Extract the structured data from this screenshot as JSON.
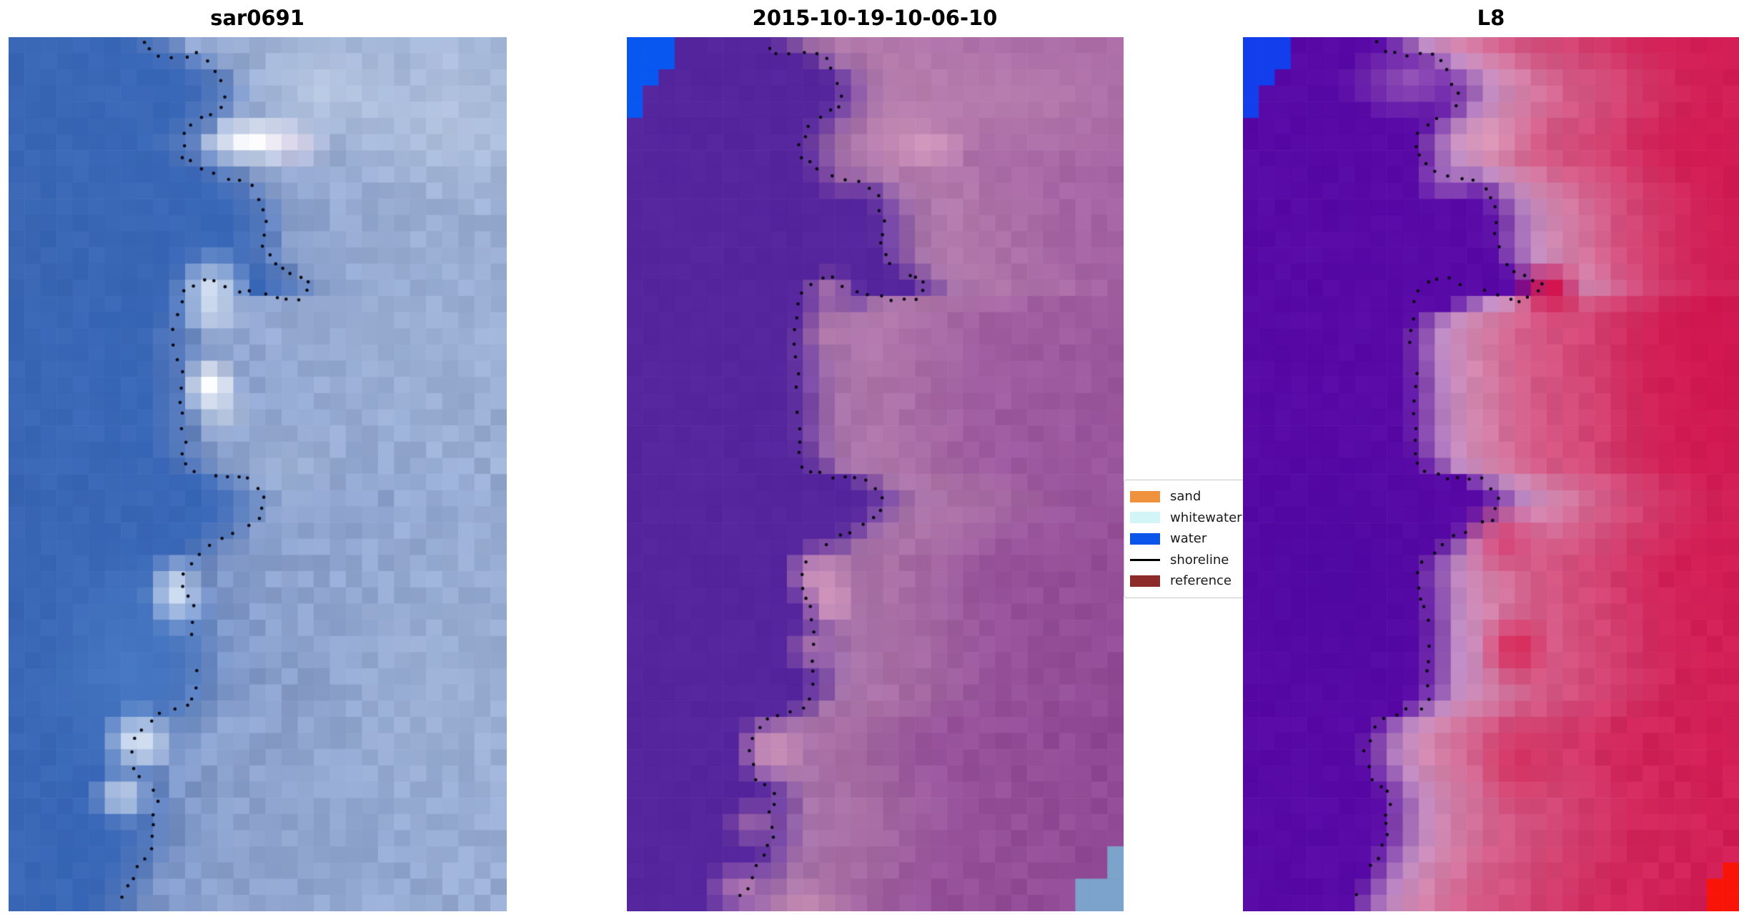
{
  "chart_data": {
    "type": "heatmap",
    "figure_background": "#ffffff",
    "panels": [
      {
        "title": "sar0691"
      },
      {
        "title": "2015-10-19-10-06-10"
      },
      {
        "title": "L8"
      }
    ],
    "legend": [
      {
        "label": "sand",
        "swatch": "patch",
        "color": "#F0913E"
      },
      {
        "label": "whitewater",
        "swatch": "patch",
        "color": "#D2F5F7"
      },
      {
        "label": "water",
        "swatch": "patch",
        "color": "#0C55EA"
      },
      {
        "label": "shoreline",
        "swatch": "line",
        "color": "#000000"
      },
      {
        "label": "reference",
        "swatch": "patch",
        "color": "#8D2B2B"
      }
    ],
    "shoreline_path": [
      [
        0.27,
        0.004
      ],
      [
        0.285,
        0.014
      ],
      [
        0.305,
        0.02
      ],
      [
        0.33,
        0.021
      ],
      [
        0.355,
        0.02
      ],
      [
        0.378,
        0.019
      ],
      [
        0.398,
        0.026
      ],
      [
        0.413,
        0.038
      ],
      [
        0.425,
        0.052
      ],
      [
        0.432,
        0.066
      ],
      [
        0.426,
        0.078
      ],
      [
        0.408,
        0.086
      ],
      [
        0.39,
        0.094
      ],
      [
        0.37,
        0.102
      ],
      [
        0.356,
        0.112
      ],
      [
        0.351,
        0.124
      ],
      [
        0.352,
        0.136
      ],
      [
        0.365,
        0.144
      ],
      [
        0.385,
        0.151
      ],
      [
        0.41,
        0.158
      ],
      [
        0.438,
        0.162
      ],
      [
        0.465,
        0.164
      ],
      [
        0.488,
        0.172
      ],
      [
        0.503,
        0.183
      ],
      [
        0.511,
        0.196
      ],
      [
        0.514,
        0.21
      ],
      [
        0.512,
        0.224
      ],
      [
        0.513,
        0.238
      ],
      [
        0.52,
        0.251
      ],
      [
        0.532,
        0.259
      ],
      [
        0.548,
        0.266
      ],
      [
        0.566,
        0.273
      ],
      [
        0.585,
        0.276
      ],
      [
        0.598,
        0.282
      ],
      [
        0.597,
        0.292
      ],
      [
        0.578,
        0.298
      ],
      [
        0.558,
        0.302
      ],
      [
        0.536,
        0.3
      ],
      [
        0.512,
        0.295
      ],
      [
        0.488,
        0.292
      ],
      [
        0.463,
        0.289
      ],
      [
        0.438,
        0.284
      ],
      [
        0.415,
        0.277
      ],
      [
        0.393,
        0.276
      ],
      [
        0.372,
        0.282
      ],
      [
        0.356,
        0.292
      ],
      [
        0.346,
        0.305
      ],
      [
        0.339,
        0.32
      ],
      [
        0.334,
        0.336
      ],
      [
        0.335,
        0.352
      ],
      [
        0.341,
        0.368
      ],
      [
        0.346,
        0.384
      ],
      [
        0.344,
        0.4
      ],
      [
        0.349,
        0.416
      ],
      [
        0.344,
        0.431
      ],
      [
        0.347,
        0.447
      ],
      [
        0.351,
        0.462
      ],
      [
        0.346,
        0.477
      ],
      [
        0.352,
        0.49
      ],
      [
        0.368,
        0.497
      ],
      [
        0.39,
        0.5
      ],
      [
        0.413,
        0.503
      ],
      [
        0.437,
        0.505
      ],
      [
        0.461,
        0.504
      ],
      [
        0.482,
        0.506
      ],
      [
        0.499,
        0.515
      ],
      [
        0.512,
        0.527
      ],
      [
        0.513,
        0.54
      ],
      [
        0.5,
        0.55
      ],
      [
        0.478,
        0.557
      ],
      [
        0.453,
        0.565
      ],
      [
        0.428,
        0.572
      ],
      [
        0.405,
        0.58
      ],
      [
        0.383,
        0.589
      ],
      [
        0.364,
        0.6
      ],
      [
        0.352,
        0.613
      ],
      [
        0.35,
        0.628
      ],
      [
        0.358,
        0.641
      ],
      [
        0.368,
        0.653
      ],
      [
        0.372,
        0.667
      ],
      [
        0.372,
        0.682
      ],
      [
        0.373,
        0.697
      ],
      [
        0.374,
        0.712
      ],
      [
        0.373,
        0.727
      ],
      [
        0.373,
        0.742
      ],
      [
        0.37,
        0.757
      ],
      [
        0.356,
        0.766
      ],
      [
        0.332,
        0.77
      ],
      [
        0.307,
        0.774
      ],
      [
        0.285,
        0.781
      ],
      [
        0.266,
        0.791
      ],
      [
        0.253,
        0.804
      ],
      [
        0.248,
        0.819
      ],
      [
        0.252,
        0.834
      ],
      [
        0.263,
        0.847
      ],
      [
        0.278,
        0.856
      ],
      [
        0.295,
        0.864
      ],
      [
        0.296,
        0.877
      ],
      [
        0.287,
        0.889
      ],
      [
        0.292,
        0.902
      ],
      [
        0.293,
        0.915
      ],
      [
        0.283,
        0.927
      ],
      [
        0.272,
        0.938
      ],
      [
        0.262,
        0.95
      ],
      [
        0.251,
        0.961
      ],
      [
        0.239,
        0.972
      ],
      [
        0.227,
        0.983
      ],
      [
        0.217,
        0.993
      ]
    ],
    "coast_boundary": [
      [
        0,
        0.27
      ],
      [
        0.02,
        0.35
      ],
      [
        0.05,
        0.425
      ],
      [
        0.075,
        0.43
      ],
      [
        0.09,
        0.4
      ],
      [
        0.115,
        0.358
      ],
      [
        0.135,
        0.36
      ],
      [
        0.15,
        0.41
      ],
      [
        0.165,
        0.455
      ],
      [
        0.185,
        0.5
      ],
      [
        0.21,
        0.515
      ],
      [
        0.245,
        0.515
      ],
      [
        0.265,
        0.535
      ],
      [
        0.283,
        0.595
      ],
      [
        0.295,
        0.565
      ],
      [
        0.302,
        0.46
      ],
      [
        0.312,
        0.385
      ],
      [
        0.33,
        0.34
      ],
      [
        0.36,
        0.34
      ],
      [
        0.4,
        0.347
      ],
      [
        0.445,
        0.347
      ],
      [
        0.475,
        0.352
      ],
      [
        0.492,
        0.375
      ],
      [
        0.505,
        0.44
      ],
      [
        0.52,
        0.505
      ],
      [
        0.536,
        0.5
      ],
      [
        0.555,
        0.465
      ],
      [
        0.575,
        0.42
      ],
      [
        0.595,
        0.37
      ],
      [
        0.615,
        0.356
      ],
      [
        0.645,
        0.366
      ],
      [
        0.69,
        0.373
      ],
      [
        0.73,
        0.373
      ],
      [
        0.755,
        0.365
      ],
      [
        0.775,
        0.315
      ],
      [
        0.792,
        0.262
      ],
      [
        0.812,
        0.25
      ],
      [
        0.832,
        0.257
      ],
      [
        0.852,
        0.278
      ],
      [
        0.872,
        0.296
      ],
      [
        0.892,
        0.289
      ],
      [
        0.912,
        0.293
      ],
      [
        0.932,
        0.28
      ],
      [
        0.952,
        0.263
      ],
      [
        0.972,
        0.246
      ],
      [
        1.0,
        0.222
      ]
    ]
  },
  "render": {
    "grid": {
      "cols": 31,
      "rows": 54
    },
    "dot": {
      "radius": 2.3,
      "spacing": 15,
      "jitter": 3.5,
      "color": "#0a0a12",
      "skip": 0.05
    },
    "panels": [
      {
        "seed": 11,
        "noiseWater": 4,
        "noiseLand": 13,
        "bands": [
          [
            -1,
            "#3862ae"
          ],
          [
            -0.07,
            "#3a68b8"
          ],
          [
            0,
            "#567abc"
          ],
          [
            0.05,
            "#7b94c6"
          ],
          [
            0.17,
            "#8aa0cc"
          ],
          [
            0.5,
            "#94a9d1"
          ],
          [
            1,
            "#9db0d6"
          ]
        ],
        "ytint": {
          "startDx": 0.04,
          "amount": 0.3,
          "color": "#c2cfe6"
        },
        "wedgeTL": null,
        "cornerBR": null,
        "patches": [
          [
            0.5,
            0.118,
            0.075,
            0.018,
            "#ffffff",
            0.95
          ],
          [
            0.575,
            0.122,
            0.05,
            0.02,
            "#e9d9ec",
            0.55
          ],
          [
            0.63,
            0.06,
            0.12,
            0.05,
            "#c3d2e8",
            0.55
          ],
          [
            0.41,
            0.295,
            0.055,
            0.035,
            "#dfe9f6",
            0.8
          ],
          [
            0.405,
            0.398,
            0.038,
            0.022,
            "#ffffff",
            0.95
          ],
          [
            0.43,
            0.428,
            0.045,
            0.022,
            "#d5e0f0",
            0.6
          ],
          [
            0.335,
            0.638,
            0.042,
            0.03,
            "#eef3fb",
            0.9
          ],
          [
            0.262,
            0.803,
            0.05,
            0.026,
            "#ffffff",
            0.95
          ],
          [
            0.228,
            0.868,
            0.042,
            0.022,
            "#dbe4f2",
            0.75
          ],
          [
            0.25,
            0.72,
            0.13,
            0.09,
            "#4e80c8",
            0.5
          ],
          [
            0.55,
            0.5,
            0.1,
            0.05,
            "#a9bcda",
            0.45
          ],
          [
            0.78,
            0.33,
            0.18,
            0.12,
            "#9cb0d4",
            0.4
          ],
          [
            0.88,
            0.09,
            0.14,
            0.07,
            "#bac9e2",
            0.5
          ],
          [
            0.86,
            0.74,
            0.18,
            0.13,
            "#a2b5d6",
            0.38
          ],
          [
            0.6,
            0.92,
            0.15,
            0.08,
            "#8fa5cc",
            0.35
          ]
        ]
      },
      {
        "seed": 22,
        "noiseWater": 2,
        "noiseLand": 7,
        "bands": [
          [
            -1,
            "#54259d"
          ],
          [
            -0.02,
            "#54259d"
          ],
          [
            0.025,
            "#7a4aa4"
          ],
          [
            0.07,
            "#a673a9"
          ],
          [
            0.17,
            "#a96fa4"
          ],
          [
            0.38,
            "#96519a"
          ],
          [
            1,
            "#8b4290"
          ]
        ],
        "ytint": {
          "startDx": 0.1,
          "amount": 0.5,
          "color": "#c289b6"
        },
        "wedgeTL": {
          "color": "#0857F0",
          "rows": [
            [
              0.028,
              0.085
            ],
            [
              0.029,
              0.06
            ],
            [
              0.029,
              0.042
            ],
            [
              0.03,
              0.016
            ]
          ]
        },
        "cornerBR": {
          "color": "#7BA3CC",
          "rows": [
            [
              0.034,
              0.09
            ],
            [
              0.036,
              0.042
            ]
          ]
        },
        "patches": [
          [
            0.6,
            0.125,
            0.065,
            0.02,
            "#d99ec2",
            0.9
          ],
          [
            0.545,
            0.105,
            0.05,
            0.02,
            "#c489b4",
            0.6
          ],
          [
            0.44,
            0.158,
            0.05,
            0.018,
            "#b67cab",
            0.55
          ],
          [
            0.41,
            0.295,
            0.04,
            0.02,
            "#c288ae",
            0.7
          ],
          [
            0.4,
            0.335,
            0.032,
            0.018,
            "#bd82ab",
            0.6
          ],
          [
            0.385,
            0.615,
            0.048,
            0.026,
            "#d096ba",
            0.85
          ],
          [
            0.41,
            0.648,
            0.04,
            0.022,
            "#d89cbe",
            0.8
          ],
          [
            0.375,
            0.7,
            0.04,
            0.02,
            "#c389b2",
            0.6
          ],
          [
            0.29,
            0.815,
            0.05,
            0.028,
            "#d095ba",
            0.85
          ],
          [
            0.255,
            0.9,
            0.04,
            0.02,
            "#bf85ae",
            0.55
          ],
          [
            0.23,
            0.975,
            0.05,
            0.022,
            "#ca8fb6",
            0.65
          ],
          [
            0.36,
            0.995,
            0.06,
            0.02,
            "#cb92b7",
            0.65
          ],
          [
            0.78,
            0.07,
            0.22,
            0.06,
            "#bd85b0",
            0.45
          ]
        ]
      },
      {
        "seed": 33,
        "noiseWater": 3,
        "noiseLand": 6,
        "bands": [
          [
            -1,
            "#5709a4"
          ],
          [
            -0.02,
            "#5809a6"
          ],
          [
            0.025,
            "#8b4fb0"
          ],
          [
            0.065,
            "#c08cc4"
          ],
          [
            0.12,
            "#d186ae"
          ],
          [
            0.23,
            "#d45c87"
          ],
          [
            0.5,
            "#d2275c"
          ],
          [
            1,
            "#d0114c"
          ]
        ],
        "ytint": null,
        "wedgeTL": {
          "color": "#123EEC",
          "rows": [
            [
              0.028,
              0.085
            ],
            [
              0.029,
              0.06
            ],
            [
              0.029,
              0.042
            ],
            [
              0.03,
              0.016
            ]
          ]
        },
        "cornerBR": {
          "color": "#F81507",
          "rows": [
            [
              0.03,
              0.052
            ],
            [
              0.034,
              0.026
            ]
          ]
        },
        "patches": [
          [
            0.62,
            0.29,
            0.05,
            0.025,
            "#d50f48",
            0.8
          ],
          [
            0.53,
            0.575,
            0.06,
            0.03,
            "#d63a6c",
            0.7
          ],
          [
            0.55,
            0.7,
            0.05,
            0.03,
            "#da1c4e",
            0.7
          ],
          [
            0.56,
            0.83,
            0.06,
            0.04,
            "#d42858",
            0.6
          ],
          [
            0.18,
            0.62,
            0.17,
            0.1,
            "#4c08a0",
            0.55
          ],
          [
            0.42,
            0.16,
            0.05,
            0.02,
            "#c79bc8",
            0.6
          ],
          [
            0.34,
            0.05,
            0.09,
            0.03,
            "#b57ec0",
            0.5
          ],
          [
            0.95,
            0.32,
            0.15,
            0.35,
            "#d00f4a",
            0.5
          ],
          [
            0.5,
            0.115,
            0.06,
            0.02,
            "#e4a9c6",
            0.5
          ]
        ]
      }
    ]
  }
}
